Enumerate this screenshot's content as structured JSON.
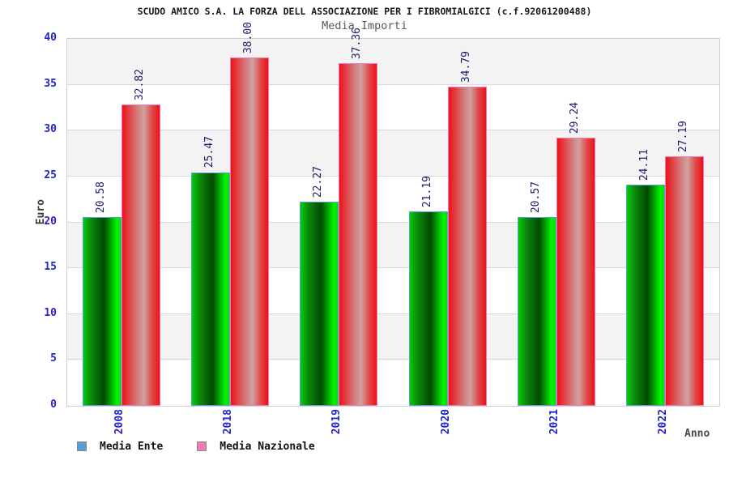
{
  "header": {
    "title": "SCUDO AMICO S.A. LA FORZA DELL ASSOCIAZIONE PER I FIBROMIALGICI (c.f.92061200488)",
    "subtitle": "Media Importi"
  },
  "axes": {
    "y_label": "Euro",
    "x_label": "Anno",
    "y_ticks": [
      0,
      5,
      10,
      15,
      20,
      25,
      30,
      35,
      40
    ],
    "tick_color": "#2323cb",
    "value_label_color": "#1b1b6f"
  },
  "legend": {
    "items": [
      {
        "label": "Media Ente",
        "swatch_color": "#5b9ad2"
      },
      {
        "label": "Media Nazionale",
        "swatch_color": "#ef7cb2"
      }
    ]
  },
  "chart_data": {
    "type": "bar",
    "title": "SCUDO AMICO S.A. LA FORZA DELL ASSOCIAZIONE PER I FIBROMIALGICI (c.f.92061200488)",
    "subtitle": "Media Importi",
    "xlabel": "Anno",
    "ylabel": "Euro",
    "ylim": [
      0,
      40
    ],
    "grid": true,
    "legend_position": "bottom-left",
    "categories": [
      "2008",
      "2018",
      "2019",
      "2020",
      "2021",
      "2022"
    ],
    "series": [
      {
        "name": "Media Ente",
        "values": [
          20.58,
          25.47,
          22.27,
          21.19,
          20.57,
          24.11
        ],
        "labels": [
          "20.58",
          "25.47",
          "22.27",
          "21.19",
          "20.57",
          "24.11"
        ],
        "border_color": "#58a0e6",
        "gradient_stops": [
          [
            0,
            "#00cf00"
          ],
          [
            20,
            "#0d8a0d"
          ],
          [
            55,
            "#024a02"
          ],
          [
            90,
            "#00f600"
          ],
          [
            100,
            "#00df00"
          ]
        ]
      },
      {
        "name": "Media Nazionale",
        "values": [
          32.82,
          38.0,
          37.36,
          34.79,
          29.24,
          27.19
        ],
        "labels": [
          "32.82",
          "38.00",
          "37.36",
          "34.79",
          "29.24",
          "27.19"
        ],
        "border_color": "#f078b4",
        "gradient_stops": [
          [
            0,
            "#ee1019"
          ],
          [
            35,
            "#d66e6e"
          ],
          [
            58,
            "#cfa2a2"
          ],
          [
            80,
            "#e04848"
          ],
          [
            100,
            "#ee1019"
          ]
        ]
      }
    ]
  }
}
